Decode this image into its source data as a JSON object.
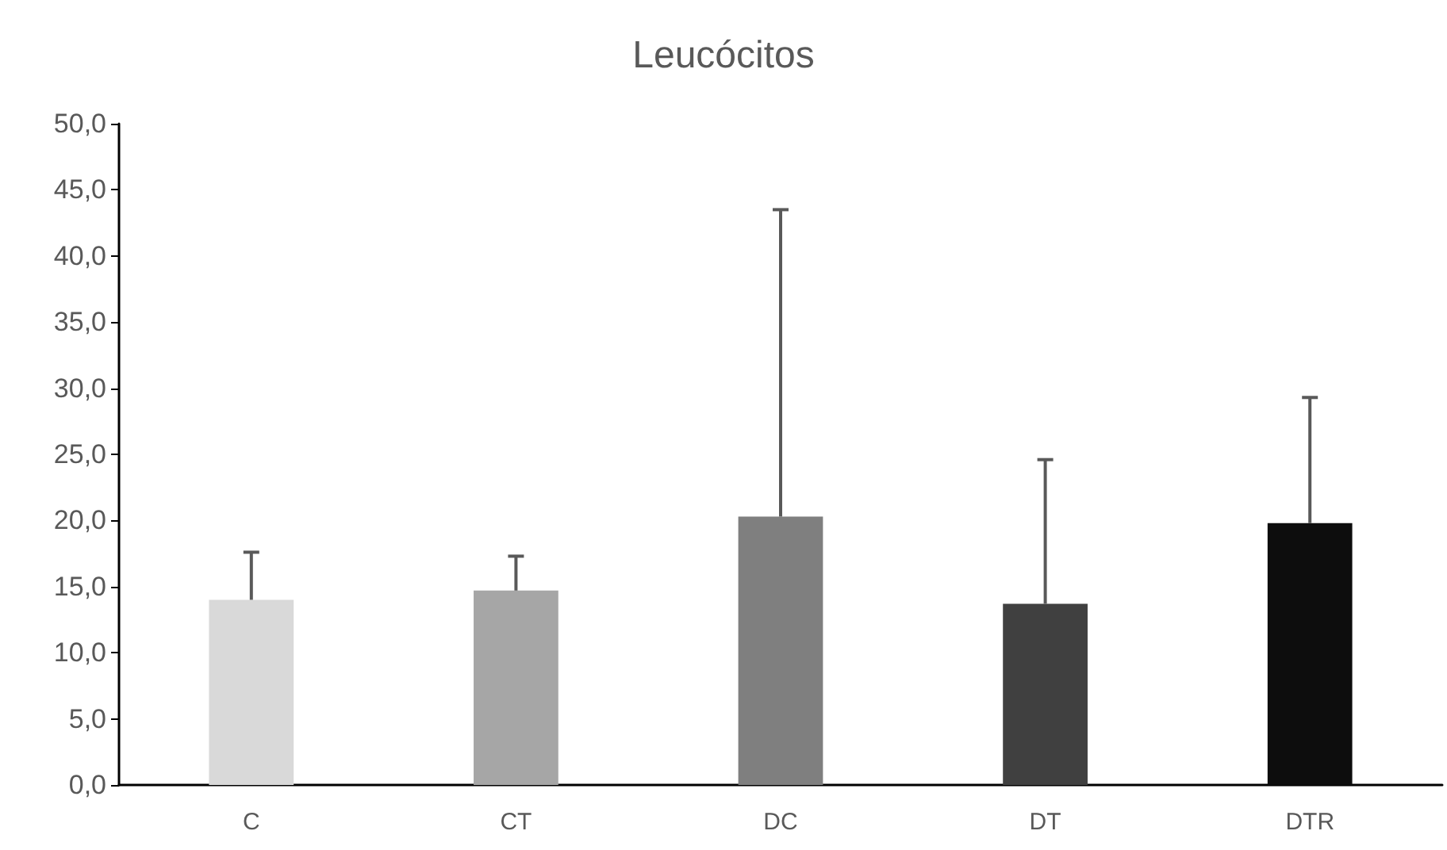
{
  "chart_data": {
    "type": "bar",
    "title": "Leucócitos",
    "categories": [
      "C",
      "CT",
      "DC",
      "DT",
      "DTR"
    ],
    "values": [
      14.0,
      14.7,
      20.3,
      13.7,
      19.8
    ],
    "colors": [
      "#d9d9d9",
      "#a6a6a6",
      "#7f7f7f",
      "#404040",
      "#0d0d0d"
    ],
    "errors": [
      [
        14.0,
        17.6
      ],
      [
        14.7,
        17.3
      ],
      [
        20.3,
        43.5
      ],
      [
        13.7,
        24.6
      ],
      [
        19.8,
        29.3
      ]
    ],
    "ylim": [
      0,
      50
    ],
    "yticks": [
      {
        "value": 0,
        "label": "0,0"
      },
      {
        "value": 5,
        "label": "5,0"
      },
      {
        "value": 10,
        "label": "10,0"
      },
      {
        "value": 15,
        "label": "15,0"
      },
      {
        "value": 20,
        "label": "20,0"
      },
      {
        "value": 25,
        "label": "25,0"
      },
      {
        "value": 30,
        "label": "30,0"
      },
      {
        "value": 35,
        "label": "35,0"
      },
      {
        "value": 40,
        "label": "40,0"
      },
      {
        "value": 45,
        "label": "45,0"
      },
      {
        "value": 50,
        "label": "50,0"
      }
    ],
    "grid": false
  }
}
